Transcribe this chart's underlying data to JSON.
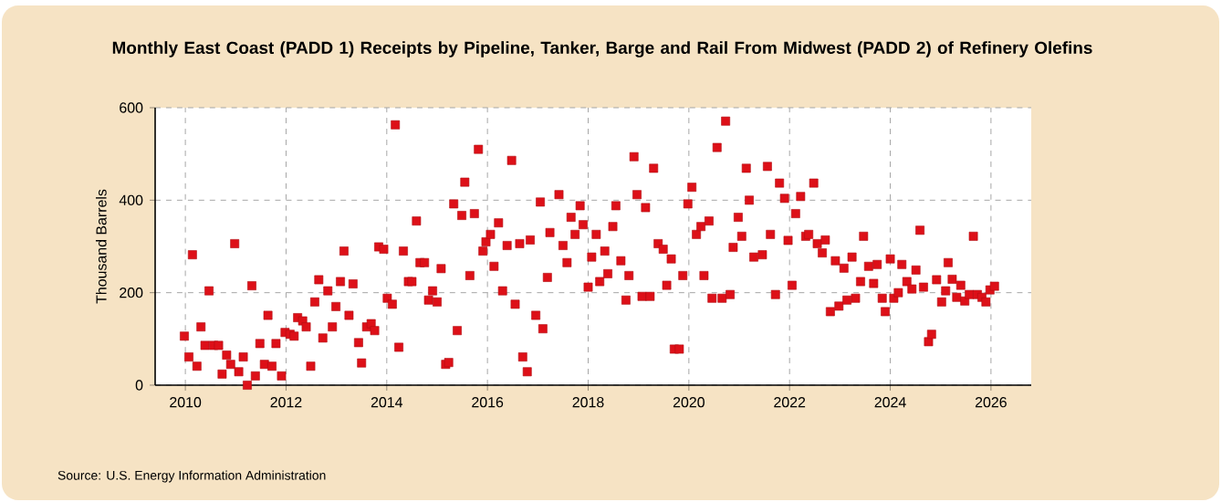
{
  "chart_data": {
    "type": "scatter",
    "title": "Monthly East Coast (PADD 1) Receipts by Pipeline, Tanker, Barge and Rail From Midwest (PADD 2) of Refinery Olefins",
    "ylabel": "Thousand Barrels",
    "annotations": [
      "Source: U.S. Energy Information Administration"
    ],
    "x": [
      2009.98,
      2010.07,
      2010.14,
      2010.23,
      2010.31,
      2010.39,
      2010.47,
      2010.56,
      2010.66,
      2010.73,
      2010.82,
      2010.9,
      2010.98,
      2011.06,
      2011.15,
      2011.23,
      2011.32,
      2011.39,
      2011.48,
      2011.57,
      2011.64,
      2011.72,
      2011.8,
      2011.91,
      2011.98,
      2012.08,
      2012.16,
      2012.23,
      2012.33,
      2012.4,
      2012.49,
      2012.57,
      2012.65,
      2012.73,
      2012.83,
      2012.92,
      2012.99,
      2013.08,
      2013.15,
      2013.25,
      2013.33,
      2013.44,
      2013.5,
      2013.6,
      2013.69,
      2013.76,
      2013.84,
      2013.94,
      2014.01,
      2014.11,
      2014.17,
      2014.24,
      2014.33,
      2014.43,
      2014.5,
      2014.59,
      2014.66,
      2014.75,
      2014.83,
      2014.91,
      2015.0,
      2015.08,
      2015.17,
      2015.23,
      2015.33,
      2015.4,
      2015.49,
      2015.55,
      2015.65,
      2015.74,
      2015.82,
      2015.91,
      2015.97,
      2016.06,
      2016.13,
      2016.22,
      2016.3,
      2016.39,
      2016.48,
      2016.55,
      2016.64,
      2016.7,
      2016.79,
      2016.85,
      2016.96,
      2017.05,
      2017.1,
      2017.19,
      2017.24,
      2017.42,
      2017.5,
      2017.58,
      2017.66,
      2017.74,
      2017.84,
      2017.9,
      2018.0,
      2018.07,
      2018.16,
      2018.23,
      2018.33,
      2018.39,
      2018.49,
      2018.55,
      2018.65,
      2018.75,
      2018.81,
      2018.91,
      2018.97,
      2019.07,
      2019.14,
      2019.23,
      2019.3,
      2019.39,
      2019.49,
      2019.56,
      2019.65,
      2019.71,
      2019.81,
      2019.88,
      2019.98,
      2020.06,
      2020.15,
      2020.24,
      2020.3,
      2020.4,
      2020.46,
      2020.56,
      2020.66,
      2020.73,
      2020.82,
      2020.88,
      2020.98,
      2021.05,
      2021.14,
      2021.2,
      2021.29,
      2021.46,
      2021.56,
      2021.62,
      2021.72,
      2021.8,
      2021.9,
      2021.97,
      2022.05,
      2022.12,
      2022.22,
      2022.32,
      2022.38,
      2022.48,
      2022.55,
      2022.65,
      2022.71,
      2022.81,
      2022.91,
      2022.98,
      2023.08,
      2023.14,
      2023.24,
      2023.31,
      2023.41,
      2023.47,
      2023.57,
      2023.67,
      2023.74,
      2023.84,
      2023.9,
      2024.0,
      2024.07,
      2024.16,
      2024.23,
      2024.33,
      2024.43,
      2024.51,
      2024.59,
      2024.66,
      2024.76,
      2024.82,
      2024.92,
      2025.02,
      2025.1,
      2025.15,
      2025.23,
      2025.32,
      2025.4,
      2025.48,
      2025.57,
      2025.65,
      2025.73,
      2025.82,
      2025.9,
      2025.98,
      2026.07
    ],
    "values": [
      106,
      61,
      282,
      41,
      126,
      86,
      204,
      86,
      86,
      24,
      65,
      45,
      306,
      29,
      61,
      0,
      215,
      20,
      90,
      45,
      151,
      41,
      90,
      20,
      114,
      110,
      106,
      146,
      139,
      126,
      41,
      180,
      228,
      102,
      204,
      126,
      170,
      224,
      290,
      151,
      219,
      92,
      48,
      126,
      133,
      118,
      299,
      294,
      188,
      175,
      563,
      82,
      290,
      224,
      224,
      355,
      265,
      265,
      184,
      204,
      180,
      252,
      45,
      49,
      392,
      118,
      367,
      439,
      237,
      371,
      510,
      290,
      310,
      326,
      257,
      351,
      204,
      302,
      486,
      175,
      306,
      61,
      29,
      314,
      151,
      396,
      122,
      233,
      330,
      412,
      302,
      265,
      363,
      326,
      388,
      347,
      212,
      277,
      326,
      224,
      290,
      241,
      343,
      388,
      269,
      184,
      237,
      494,
      412,
      192,
      384,
      192,
      469,
      306,
      294,
      216,
      273,
      78,
      78,
      237,
      392,
      428,
      326,
      343,
      237,
      355,
      188,
      514,
      188,
      571,
      196,
      298,
      363,
      322,
      469,
      400,
      277,
      282,
      473,
      326,
      196,
      437,
      404,
      313,
      216,
      371,
      408,
      322,
      326,
      437,
      306,
      286,
      314,
      159,
      269,
      171,
      253,
      184,
      277,
      188,
      224,
      322,
      257,
      220,
      261,
      188,
      159,
      273,
      188,
      200,
      261,
      224,
      208,
      249,
      335,
      212,
      94,
      110,
      228,
      180,
      204,
      265,
      229,
      190,
      216,
      182,
      196,
      322,
      196,
      190,
      180,
      206,
      214
    ],
    "color": "#dd1018",
    "marker": "square",
    "xlim": [
      2009.4,
      2026.8
    ],
    "xticks": [
      2010,
      2012,
      2014,
      2016,
      2018,
      2020,
      2022,
      2024,
      2026
    ],
    "ylim": [
      0,
      600
    ],
    "yticks": [
      0,
      200,
      400,
      600
    ],
    "grid": true
  }
}
